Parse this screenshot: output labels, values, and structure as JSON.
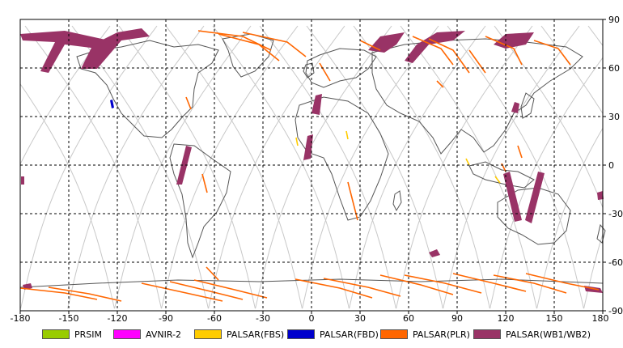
{
  "map": {
    "x_ticks": [
      "-180",
      "-150",
      "-120",
      "-90",
      "-60",
      "-30",
      "0",
      "30",
      "60",
      "90",
      "120",
      "150",
      "180"
    ],
    "y_ticks": [
      "90",
      "60",
      "30",
      "0",
      "-30",
      "-60",
      "-90"
    ],
    "lon_range": [
      -180,
      180
    ],
    "lat_range": [
      -90,
      90
    ],
    "grid": "dashed",
    "colors": {
      "border": "#000000",
      "grid": "#000000",
      "coastline": "#555555",
      "orbit_track": "#c8c8c8"
    }
  },
  "legend": {
    "items": [
      {
        "label": "PRSIM",
        "color": "#99cc00"
      },
      {
        "label": "AVNIR-2",
        "color": "#ff00ff"
      },
      {
        "label": "PALSAR(FBS)",
        "color": "#ffcc00"
      },
      {
        "label": "PALSAR(FBD)",
        "color": "#0000cc"
      },
      {
        "label": "PALSAR(PLR)",
        "color": "#ff6600"
      },
      {
        "label": "PALSAR(WB1/WB2)",
        "color": "#993366"
      }
    ]
  }
}
